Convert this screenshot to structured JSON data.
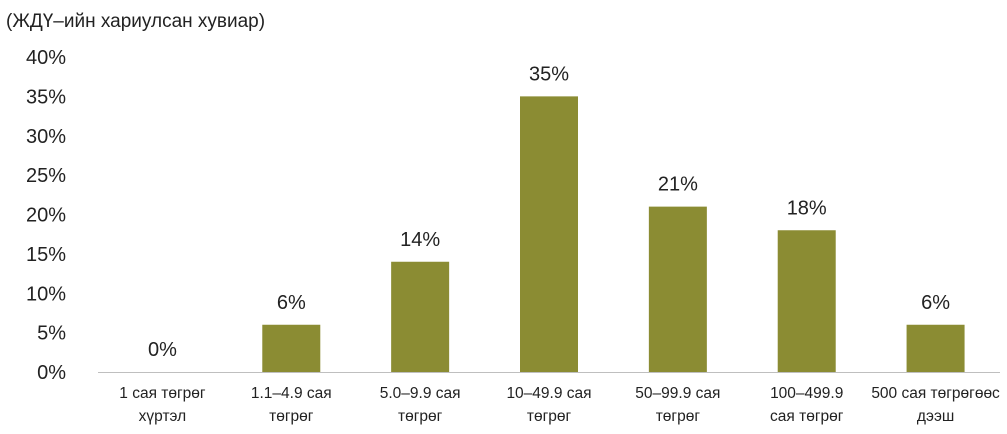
{
  "chart_data": {
    "type": "bar",
    "title": "",
    "ylabel": "(ЖДҮ–ийн хариулсан хувиар)",
    "xlabel": "",
    "categories": [
      [
        "1 сая төгрөг",
        "хүртэл"
      ],
      [
        "1.1–4.9 сая",
        "төгрөг"
      ],
      [
        "5.0–9.9 сая",
        "төгрөг"
      ],
      [
        "10–49.9 сая",
        "төгрөг"
      ],
      [
        "50–99.9 сая",
        "төгрөг"
      ],
      [
        "100–499.9",
        "сая төгрөг"
      ],
      [
        "500 сая төгрөгөөс",
        "дээш"
      ]
    ],
    "values": [
      0,
      6,
      14,
      35,
      21,
      18,
      6
    ],
    "data_labels": [
      "0%",
      "6%",
      "14%",
      "35%",
      "21%",
      "18%",
      "6%"
    ],
    "ylim": [
      0,
      40
    ],
    "yticks": [
      0,
      5,
      10,
      15,
      20,
      25,
      30,
      35,
      40
    ],
    "ytick_labels": [
      "0%",
      "5%",
      "10%",
      "15%",
      "20%",
      "25%",
      "30%",
      "35%",
      "40%"
    ],
    "grid": false,
    "legend": "none",
    "bar_color": "#8b8c33",
    "axis_color": "#bfbfbf"
  }
}
